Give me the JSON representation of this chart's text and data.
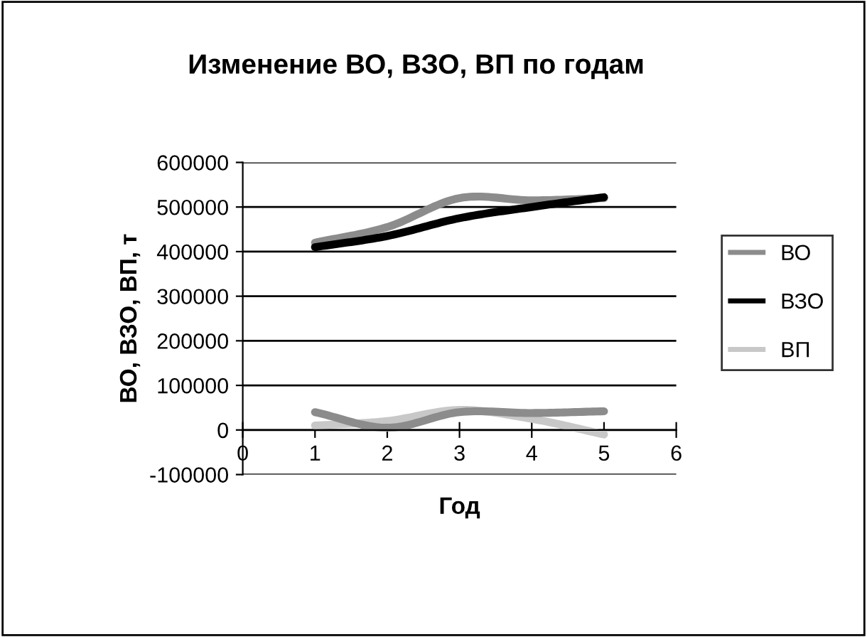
{
  "chart_data": {
    "type": "line",
    "title": "Изменение ВО, ВЗО, ВП по годам",
    "xlabel": "Год",
    "ylabel": "ВО, ВЗО, ВП, т",
    "x": [
      1,
      2,
      3,
      4,
      5
    ],
    "series": [
      {
        "name": "ВО",
        "color": "#8c8c8c",
        "values": [
          420000,
          455000,
          520000,
          515000,
          520000
        ]
      },
      {
        "name": "ВЗО",
        "color": "#000000",
        "values": [
          410000,
          435000,
          475000,
          500000,
          522000
        ]
      },
      {
        "name": "ВП",
        "color": "#c8c8c8",
        "values": [
          10000,
          20000,
          45000,
          25000,
          -10000
        ]
      },
      {
        "color": "#8c8c8c",
        "values": [
          40000,
          5000,
          40000,
          38000,
          42000
        ]
      }
    ],
    "xlim": [
      0,
      6
    ],
    "xticks": [
      0,
      1,
      2,
      3,
      4,
      5,
      6
    ],
    "ylim": [
      -100000,
      600000
    ],
    "yticks": [
      -100000,
      0,
      100000,
      200000,
      300000,
      400000,
      500000,
      600000
    ],
    "grid": "y",
    "legend": "right",
    "marker": "none",
    "line_style": "solid"
  }
}
